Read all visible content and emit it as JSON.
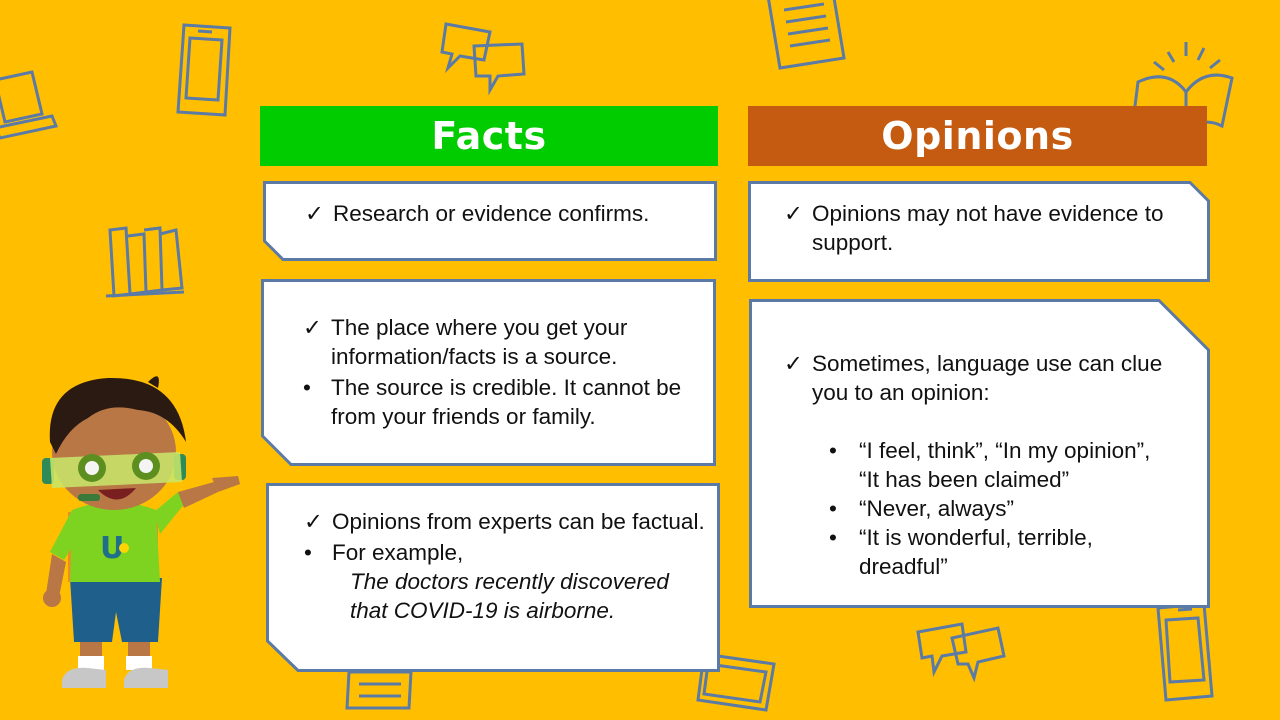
{
  "colors": {
    "background": "#ffbf00",
    "facts_header": "#00cc00",
    "opinions_header": "#c55a11",
    "card_border": "#5b7aa6",
    "doodle": "#5b7aa6"
  },
  "facts": {
    "title": "Facts",
    "card1": {
      "items": [
        {
          "mark": "✓",
          "text": "Research or evidence confirms."
        }
      ]
    },
    "card2": {
      "items": [
        {
          "mark": "✓",
          "text": "The place where you get your information/facts is a source."
        },
        {
          "mark": "•",
          "text": "The source is credible. It cannot be from your friends or family."
        }
      ]
    },
    "card3": {
      "items": [
        {
          "mark": "✓",
          "text": "Opinions from experts can be factual."
        },
        {
          "mark": "•",
          "text": "For example,"
        }
      ],
      "example": "The doctors recently discovered that COVID-19 is airborne."
    }
  },
  "opinions": {
    "title": "Opinions",
    "card1": {
      "items": [
        {
          "mark": "✓",
          "text": "Opinions may not have evidence to support."
        }
      ]
    },
    "card2": {
      "intro": {
        "mark": "✓",
        "text": "Sometimes, language use can clue you to an opinion:"
      },
      "examples": [
        {
          "mark": "•",
          "text": "“I feel, think”, “In my opinion”, “It has been claimed”"
        },
        {
          "mark": "•",
          "text": "“Never, always”"
        },
        {
          "mark": "•",
          "text": "“It is wonderful, terrible, dreadful”"
        }
      ]
    }
  },
  "decorations": {
    "icons": [
      "laptop-icon",
      "phone-icon",
      "chat-bubbles-icon",
      "document-icon",
      "open-book-icon",
      "books-icon",
      "chat-bubbles-icon",
      "phone-icon",
      "laptop-icon",
      "document-icon"
    ],
    "character": "boy-with-goggles-mascot",
    "shirt_logo": "U"
  }
}
